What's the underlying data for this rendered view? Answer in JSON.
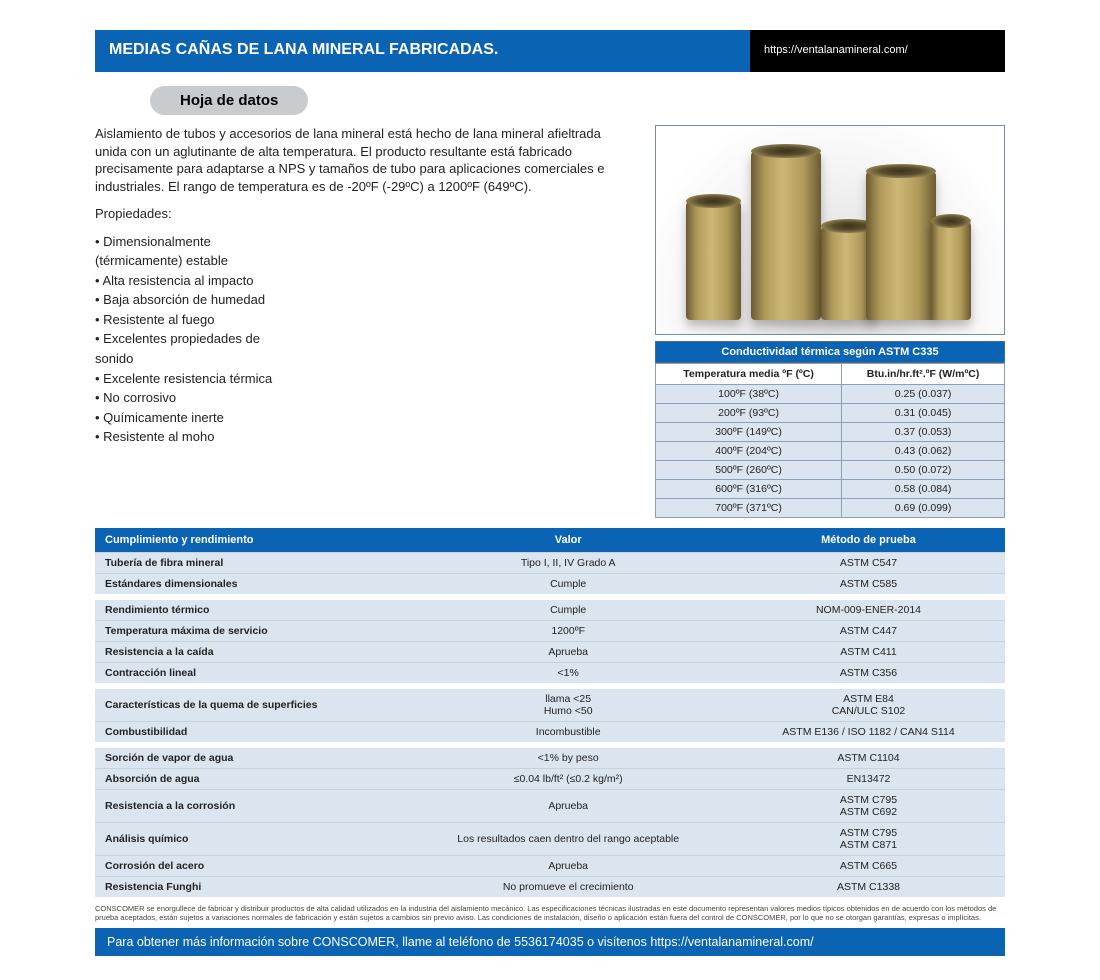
{
  "header": {
    "title": "MEDIAS CAÑAS DE LANA MINERAL FABRICADAS.",
    "url": "https://ventalanamineral.com/"
  },
  "datasheet_label": "Hoja de datos",
  "description": "Aislamiento de tubos y accesorios de lana mineral está hecho de lana mineral afieltrada unida con un aglutinante de alta temperatura. El producto resultante está fabricado precisamente para adaptarse a NPS y tamaños de tubo para aplicaciones comerciales e industriales. El rango de temperatura es de -20ºF (-29ºC) a 1200ºF (649ºC).",
  "properties_title": "Propiedades:",
  "properties": [
    "• Dimensionalmente",
    "(térmicamente) estable",
    "• Alta resistencia al impacto",
    "• Baja absorción de humedad",
    "• Resistente al fuego",
    "• Excelentes propiedades de",
    "sonido",
    "• Excelente resistencia térmica",
    "• No corrosivo",
    "• Químicamente inerte",
    "• Resistente al moho"
  ],
  "thermal_table": {
    "caption": "Conductividad térmica según ASTM C335",
    "col1": "Temperatura media ºF (ºC)",
    "col2": "Btu.in/hr.ft².ºF (W/mºC)",
    "rows": [
      {
        "t": "100ºF (38ºC)",
        "v": "0.25 (0.037)"
      },
      {
        "t": "200ºF (93ºC)",
        "v": "0.31 (0.045)"
      },
      {
        "t": "300ºF (149ºC)",
        "v": "0.37 (0.053)"
      },
      {
        "t": "400ºF (204ºC)",
        "v": "0.43 (0.062)"
      },
      {
        "t": "500ºF (260ºC)",
        "v": "0.50 (0.072)"
      },
      {
        "t": "600ºF (316ºC)",
        "v": "0.58 (0.084)"
      },
      {
        "t": "700ºF (371ºC)",
        "v": "0.69 (0.099)"
      }
    ]
  },
  "compliance_table": {
    "headers": {
      "c1": "Cumplimiento y rendimiento",
      "c2": "Valor",
      "c3": "Método de prueba"
    },
    "groups": [
      [
        {
          "label": "Tubería de fibra mineral",
          "value": "Tipo I, II, IV Grado A",
          "method": "ASTM C547"
        },
        {
          "label": "Estándares dimensionales",
          "value": "Cumple",
          "method": "ASTM C585"
        }
      ],
      [
        {
          "label": "Rendimiento térmico",
          "value": "Cumple",
          "method": "NOM-009-ENER-2014"
        },
        {
          "label": "Temperatura máxima de servicio",
          "value": "1200ºF",
          "method": "ASTM C447"
        },
        {
          "label": "Resistencia a la caída",
          "value": "Aprueba",
          "method": "ASTM C411"
        },
        {
          "label": "Contracción lineal",
          "value": "<1%",
          "method": "ASTM C356"
        }
      ],
      [
        {
          "label": "Características de la quema de superficies",
          "value": "llama <25\nHumo <50",
          "method": "ASTM E84\nCAN/ULC S102"
        },
        {
          "label": "Combustibilidad",
          "value": "Incombustible",
          "method": "ASTM E136 / ISO 1182 / CAN4 S114"
        }
      ],
      [
        {
          "label": "Sorción de vapor de agua",
          "value": "<1% by peso",
          "method": "ASTM C1104"
        },
        {
          "label": "Absorción de agua",
          "value": "≤0.04 lb/ft² (≤0.2 kg/m²)",
          "method": "EN13472"
        },
        {
          "label": "Resistencia a la corrosión",
          "value": "Aprueba",
          "method": "ASTM C795\nASTM C692"
        },
        {
          "label": "Análisis químico",
          "value": "Los resultados caen dentro del rango aceptable",
          "method": "ASTM C795\nASTM C871"
        },
        {
          "label": "Corrosión del acero",
          "value": "Aprueba",
          "method": "ASTM C665"
        },
        {
          "label": "Resistencia Funghi",
          "value": "No promueve el crecimiento",
          "method": "ASTM C1338"
        }
      ]
    ]
  },
  "disclaimer": "CONSCOMER se enorgullece de fabricar y distribuir productos de alta calidad utilizados en la industria del aislamiento mecánico. Las especificaciones técnicas ilustradas en este documento representan valores medios típicos obtenidos en de acuerdo con los métodos de prueba aceptados, están sujetos a variaciones normales de fabricación y están sujetos a cambios sin previo aviso. Las condiciones de instalación, diseño o aplicación están fuera del control de CONSCOMER, por lo que no se otorgan garantías, expresas o implícitas.",
  "footer": "Para obtener más información sobre CONSCOMER, llame al teléfono de 5536174035 o visítenos https://ventalanamineral.com/",
  "colors": {
    "primary": "#0b63b3",
    "black": "#000000",
    "pill": "#c9cccf",
    "cell": "#dbe5ef"
  }
}
